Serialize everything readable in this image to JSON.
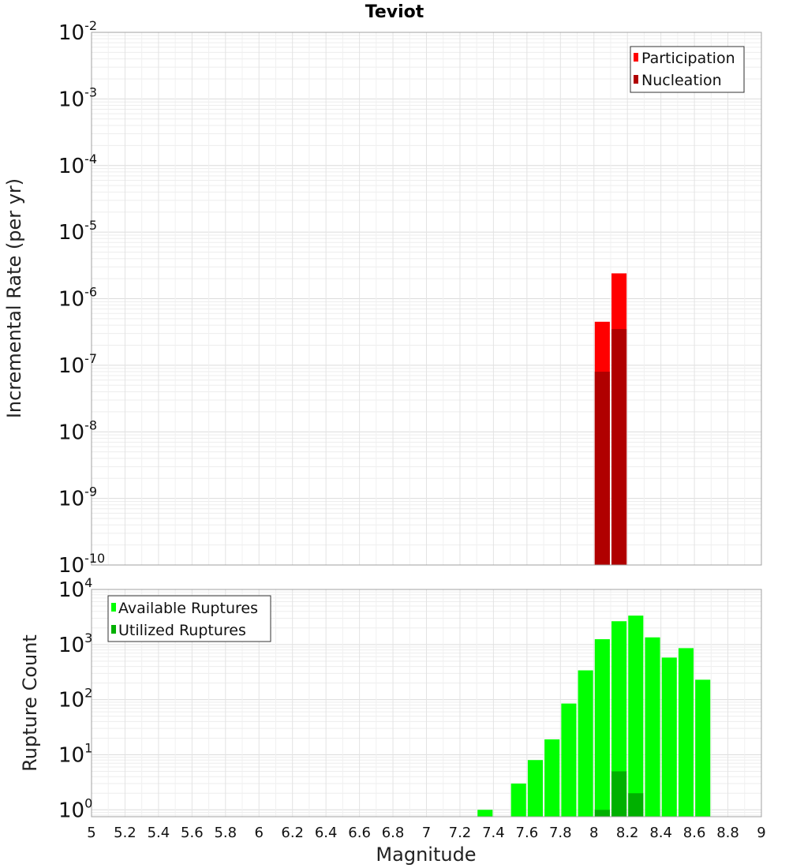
{
  "chart_data": [
    {
      "type": "bar",
      "title": "Teviot",
      "ylabel": "Incremental Rate (per yr)",
      "xlabel": "",
      "yscale": "log",
      "ylim": [
        1e-10,
        0.01
      ],
      "xlim": [
        5,
        9
      ],
      "ytick_exponents": [
        "-10",
        "-9",
        "-8",
        "-7",
        "-6",
        "-5",
        "-4",
        "-3",
        "-2"
      ],
      "ytick_base": "10",
      "grid": true,
      "legend_position": "top-right",
      "bar_width": 0.09,
      "series": [
        {
          "name": "Participation",
          "color": "#ff0000",
          "x": [
            8.05,
            8.15
          ],
          "values": [
            4.5e-07,
            2.4e-06
          ]
        },
        {
          "name": "Nucleation",
          "color": "#b00000",
          "x": [
            8.05,
            8.15
          ],
          "values": [
            8e-08,
            3.5e-07
          ]
        }
      ]
    },
    {
      "type": "bar",
      "title": "",
      "ylabel": "Rupture Count",
      "xlabel": "Magnitude",
      "yscale": "log",
      "ylim": [
        0.75,
        10000
      ],
      "xlim": [
        5,
        9
      ],
      "ytick_exponents": [
        "0",
        "1",
        "2",
        "3",
        "4"
      ],
      "ytick_base": "10",
      "xticks": [
        "5",
        "5.2",
        "5.4",
        "5.6",
        "5.8",
        "6",
        "6.2",
        "6.4",
        "6.6",
        "6.8",
        "7",
        "7.2",
        "7.4",
        "7.6",
        "7.8",
        "8",
        "8.2",
        "8.4",
        "8.6",
        "8.8",
        "9"
      ],
      "grid": true,
      "legend_position": "top-left",
      "bar_width": 0.09,
      "series": [
        {
          "name": "Available Ruptures",
          "color": "#00ff00",
          "x": [
            7.35,
            7.55,
            7.65,
            7.75,
            7.85,
            7.95,
            8.05,
            8.15,
            8.25,
            8.35,
            8.45,
            8.55,
            8.65
          ],
          "values": [
            1,
            3,
            8,
            19,
            85,
            340,
            1250,
            2650,
            3350,
            1350,
            580,
            860,
            230
          ]
        },
        {
          "name": "Utilized Ruptures",
          "color": "#00b000",
          "x": [
            8.05,
            8.15,
            8.25
          ],
          "values": [
            1,
            5,
            2
          ]
        }
      ]
    }
  ]
}
